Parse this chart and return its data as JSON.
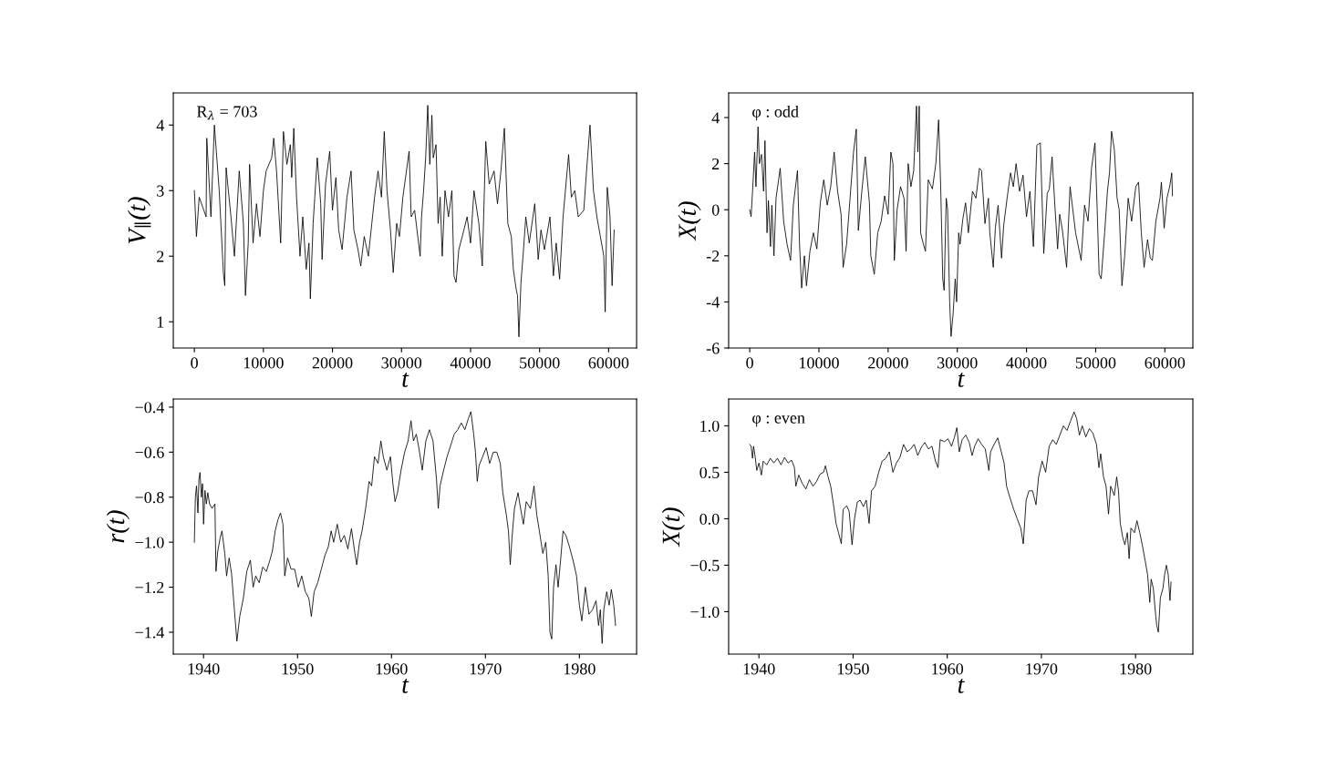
{
  "chart_data": [
    {
      "type": "line",
      "xlabel": "t",
      "ylabel": "V$_{∥}$(t)",
      "annotations": [
        "R$_{λ}$ = 703"
      ],
      "grid": false,
      "x": [
        0,
        300,
        700,
        1700,
        1800,
        2400,
        2900,
        3600,
        4200,
        4400,
        4600,
        5300,
        5800,
        6500,
        7100,
        7400,
        7800,
        8000,
        8500,
        9000,
        9500,
        10000,
        10400,
        11200,
        11500,
        11900,
        12500,
        12900,
        13400,
        13900,
        14100,
        14400,
        14800,
        15300,
        15700,
        16200,
        16600,
        16800,
        17200,
        17800,
        18300,
        18500,
        19000,
        19600,
        20000,
        20500,
        20900,
        21400,
        22100,
        22700,
        23100,
        23700,
        24100,
        24600,
        25200,
        25700,
        26100,
        26600,
        27100,
        27500,
        27900,
        28400,
        28800,
        29300,
        29700,
        30200,
        31100,
        31400,
        31900,
        32700,
        32900,
        33200,
        33500,
        33800,
        34100,
        34400,
        34600,
        35000,
        35300,
        35600,
        35900,
        36300,
        36800,
        37300,
        37600,
        37900,
        38300,
        38800,
        39500,
        40000,
        40500,
        41200,
        41700,
        42200,
        42700,
        43400,
        43900,
        44400,
        44900,
        45400,
        45900,
        46200,
        46600,
        46800,
        47000,
        47300,
        47600,
        48000,
        48500,
        49300,
        49800,
        50200,
        50700,
        51500,
        52000,
        52400,
        52900,
        53400,
        54200,
        54600,
        55100,
        55600,
        56400,
        56800,
        57300,
        57800,
        58300,
        58800,
        59300,
        59500,
        59800,
        60200,
        60500,
        60800
      ],
      "series": [
        {
          "color": "#000000",
          "values": [
            3.0,
            2.3,
            2.9,
            2.6,
            3.8,
            2.6,
            4.0,
            3.0,
            1.75,
            1.55,
            3.35,
            2.6,
            2.0,
            3.3,
            2.5,
            1.4,
            2.2,
            3.4,
            2.2,
            2.8,
            2.3,
            3.0,
            3.3,
            3.5,
            3.8,
            3.3,
            2.2,
            3.9,
            3.4,
            3.7,
            3.2,
            3.95,
            2.9,
            2.0,
            2.6,
            1.8,
            2.2,
            1.35,
            2.5,
            3.5,
            2.8,
            1.95,
            3.1,
            3.6,
            2.7,
            3.2,
            2.4,
            2.1,
            2.9,
            3.3,
            2.4,
            2.1,
            1.85,
            2.3,
            2.0,
            2.5,
            2.9,
            3.3,
            2.9,
            3.9,
            3.0,
            2.4,
            1.75,
            2.5,
            2.3,
            2.9,
            3.6,
            2.6,
            2.7,
            2.0,
            2.6,
            3.0,
            3.5,
            4.3,
            3.4,
            4.15,
            3.5,
            3.7,
            2.5,
            2.9,
            2.0,
            3.0,
            2.6,
            3.0,
            1.7,
            1.6,
            2.1,
            2.3,
            2.6,
            2.2,
            3.0,
            2.5,
            1.85,
            3.75,
            3.1,
            3.3,
            2.8,
            3.3,
            3.95,
            2.5,
            2.3,
            1.8,
            1.5,
            1.4,
            0.77,
            1.6,
            2.0,
            2.6,
            2.2,
            2.8,
            1.95,
            2.4,
            2.1,
            2.6,
            1.7,
            2.2,
            1.65,
            2.6,
            3.55,
            2.9,
            3.0,
            2.6,
            2.7,
            3.3,
            4.0,
            3.0,
            2.6,
            2.3,
            2.0,
            1.15,
            3.05,
            2.6,
            1.55,
            2.4
          ]
        }
      ],
      "xlim": [
        -3050,
        64050
      ],
      "ylim": [
        0.6,
        4.49
      ],
      "xticks": [
        0,
        10000,
        20000,
        30000,
        40000,
        50000,
        60000
      ],
      "yticks": [
        1,
        2,
        3,
        4
      ]
    },
    {
      "type": "line",
      "xlabel": "t",
      "ylabel": "X(t)",
      "annotations": [
        "φ : odd"
      ],
      "grid": false,
      "x": [
        0,
        200,
        500,
        700,
        900,
        1200,
        1400,
        1700,
        2000,
        2200,
        2500,
        2700,
        3000,
        3200,
        3500,
        3800,
        4400,
        4900,
        5400,
        5900,
        6300,
        6900,
        7200,
        7500,
        7900,
        8200,
        8700,
        9200,
        9700,
        10200,
        10700,
        11200,
        11700,
        12200,
        12700,
        13200,
        13500,
        14000,
        14500,
        15000,
        15400,
        15700,
        16200,
        16700,
        17300,
        17500,
        18000,
        18500,
        19000,
        19500,
        20000,
        20400,
        20700,
        20900,
        21300,
        21800,
        22300,
        22600,
        22900,
        23300,
        23700,
        24100,
        24300,
        24500,
        24700,
        25100,
        25400,
        25800,
        26400,
        26900,
        27300,
        27600,
        27900,
        28100,
        28400,
        28600,
        28900,
        29100,
        29400,
        29700,
        29900,
        30200,
        30400,
        30800,
        31200,
        31600,
        32200,
        32700,
        33200,
        33500,
        34000,
        34500,
        34700,
        35200,
        35500,
        35900,
        36400,
        36700,
        37200,
        37700,
        38100,
        38500,
        39000,
        39500,
        40000,
        40500,
        41000,
        41500,
        42000,
        42500,
        43000,
        43300,
        43700,
        44100,
        44500,
        44800,
        45200,
        45800,
        46300,
        47100,
        47900,
        48400,
        48900,
        49400,
        49900,
        50200,
        50500,
        50800,
        51300,
        51700,
        52000,
        52300,
        52700,
        53100,
        53400,
        53800,
        54200,
        54700,
        55200,
        55800,
        56200,
        56600,
        57000,
        57500,
        57900,
        58200,
        58700,
        59300,
        59500,
        59900,
        60300,
        60700,
        61000,
        61100
      ],
      "series": [
        {
          "color": "#000000",
          "values": [
            0,
            -0.3,
            1.3,
            2.5,
            1.0,
            3.6,
            2.0,
            2.4,
            0.8,
            3.0,
            -1.0,
            0.4,
            -1.6,
            0.2,
            -2.0,
            0.5,
            1.8,
            -0.5,
            -1.5,
            -2.2,
            0.2,
            1.7,
            -1.5,
            -3.4,
            -2.0,
            -3.3,
            -1.8,
            -1.0,
            -1.7,
            0.3,
            1.3,
            0.2,
            1.0,
            2.5,
            0.8,
            -0.2,
            -2.5,
            -1.5,
            0.5,
            2.5,
            3.5,
            -0.9,
            0.8,
            2.3,
            0.3,
            -2.0,
            -2.8,
            -1.0,
            -0.5,
            0.6,
            -0.2,
            2.5,
            2.0,
            -2.2,
            0.0,
            1.0,
            0.5,
            -1.8,
            2.0,
            1.0,
            1.7,
            4.5,
            2.5,
            4.5,
            -1.0,
            -1.5,
            -1.8,
            1.3,
            0.9,
            2.0,
            3.9,
            1.0,
            -3.0,
            -3.5,
            0.5,
            0.0,
            -4.0,
            -5.5,
            -4.5,
            -3.0,
            -4.0,
            -1.0,
            -1.5,
            -0.4,
            0.3,
            -1.0,
            0.8,
            0.5,
            1.8,
            1.7,
            -0.6,
            0.5,
            -1.0,
            -2.5,
            -0.8,
            0.2,
            -2.1,
            -0.7,
            0.5,
            1.6,
            1.0,
            2.0,
            0.8,
            1.5,
            -0.3,
            0.8,
            -1.6,
            2.8,
            2.9,
            -1.9,
            0.7,
            0.9,
            2.3,
            0.2,
            -1.7,
            -0.2,
            -0.9,
            -2.5,
            1.0,
            -1.0,
            -2.2,
            0.2,
            -0.5,
            1.8,
            2.9,
            0.2,
            -2.8,
            -3.0,
            -1.0,
            0.8,
            1.6,
            3.4,
            2.6,
            0.5,
            0.0,
            -3.3,
            -2.0,
            0.5,
            -0.5,
            1.0,
            1.2,
            -1.0,
            -2.5,
            -1.3,
            -2.1,
            -2.2,
            -0.5,
            0.5,
            1.2,
            -0.8,
            0.5,
            1.0,
            1.6,
            0.6
          ]
        }
      ],
      "xlim": [
        -3050,
        64050
      ],
      "ylim": [
        -6,
        5.07
      ],
      "xticks": [
        0,
        10000,
        20000,
        30000,
        40000,
        50000,
        60000
      ],
      "yticks": [
        -6,
        -4,
        -2,
        0,
        2,
        4
      ]
    },
    {
      "type": "line",
      "xlabel": "t",
      "ylabel": "r(t)",
      "grid": false,
      "x": [
        1939.02,
        1939.13,
        1939.25,
        1939.4,
        1939.51,
        1939.62,
        1939.77,
        1939.89,
        1940.0,
        1940.15,
        1940.3,
        1940.45,
        1940.64,
        1940.91,
        1941.21,
        1941.32,
        1941.51,
        1941.77,
        1941.96,
        1942.26,
        1942.45,
        1942.72,
        1942.98,
        1943.28,
        1943.55,
        1943.85,
        1944.23,
        1944.6,
        1944.98,
        1945.28,
        1945.55,
        1945.92,
        1946.3,
        1946.68,
        1947.06,
        1947.32,
        1947.62,
        1947.92,
        1948.19,
        1948.45,
        1948.64,
        1948.94,
        1949.32,
        1949.7,
        1950.08,
        1950.45,
        1950.83,
        1951.21,
        1951.47,
        1951.77,
        1952.15,
        1952.53,
        1952.91,
        1953.28,
        1953.58,
        1953.85,
        1954.23,
        1954.6,
        1954.98,
        1955.36,
        1955.74,
        1956.11,
        1956.3,
        1956.6,
        1956.87,
        1957.25,
        1957.62,
        1957.89,
        1958.19,
        1958.57,
        1958.87,
        1959.13,
        1959.51,
        1959.89,
        1960.15,
        1960.38,
        1960.64,
        1961.02,
        1961.4,
        1961.77,
        1962.08,
        1962.34,
        1962.64,
        1962.91,
        1963.28,
        1963.66,
        1964.04,
        1964.42,
        1964.79,
        1964.98,
        1965.17,
        1965.55,
        1965.92,
        1966.3,
        1966.68,
        1967.06,
        1967.43,
        1967.81,
        1968.19,
        1968.45,
        1968.75,
        1968.94,
        1969.13,
        1969.32,
        1969.7,
        1970.08,
        1970.45,
        1970.83,
        1971.21,
        1971.58,
        1971.85,
        1972.23,
        1972.45,
        1972.64,
        1972.83,
        1973.09,
        1973.47,
        1973.74,
        1974.04,
        1974.34,
        1974.79,
        1975.17,
        1975.47,
        1975.74,
        1976.11,
        1976.42,
        1976.68,
        1976.87,
        1977.06,
        1977.25,
        1977.51,
        1977.74,
        1978.0,
        1978.26,
        1978.57,
        1978.94,
        1979.32,
        1979.7,
        1980.0,
        1980.26,
        1980.64,
        1981.02,
        1981.4,
        1981.77,
        1982.04,
        1982.23,
        1982.42,
        1982.6,
        1982.91,
        1983.17,
        1983.4,
        1983.66,
        1983.85
      ],
      "series": [
        {
          "color": "#000000",
          "values": [
            -1.0,
            -0.8,
            -0.75,
            -0.87,
            -0.72,
            -0.69,
            -0.8,
            -0.74,
            -0.92,
            -0.77,
            -0.83,
            -0.78,
            -0.83,
            -0.85,
            -0.83,
            -1.13,
            -1.04,
            -0.98,
            -0.95,
            -1.05,
            -1.15,
            -1.07,
            -1.14,
            -1.3,
            -1.44,
            -1.33,
            -1.25,
            -1.13,
            -1.08,
            -1.2,
            -1.15,
            -1.18,
            -1.11,
            -1.13,
            -1.08,
            -1.04,
            -0.95,
            -0.9,
            -0.87,
            -0.92,
            -1.15,
            -1.07,
            -1.12,
            -1.12,
            -1.2,
            -1.15,
            -1.22,
            -1.25,
            -1.33,
            -1.22,
            -1.18,
            -1.12,
            -1.06,
            -1.02,
            -0.95,
            -1.0,
            -0.92,
            -1.0,
            -0.97,
            -1.03,
            -0.94,
            -1.05,
            -1.1,
            -1.0,
            -0.95,
            -0.85,
            -0.73,
            -0.75,
            -0.62,
            -0.65,
            -0.55,
            -0.62,
            -0.68,
            -0.62,
            -0.74,
            -0.82,
            -0.78,
            -0.68,
            -0.6,
            -0.55,
            -0.46,
            -0.55,
            -0.52,
            -0.58,
            -0.68,
            -0.55,
            -0.5,
            -0.55,
            -0.72,
            -0.85,
            -0.75,
            -0.68,
            -0.62,
            -0.57,
            -0.52,
            -0.5,
            -0.47,
            -0.5,
            -0.45,
            -0.42,
            -0.52,
            -0.6,
            -0.73,
            -0.66,
            -0.62,
            -0.58,
            -0.65,
            -0.6,
            -0.6,
            -0.65,
            -0.78,
            -0.88,
            -0.95,
            -1.1,
            -0.98,
            -0.85,
            -0.78,
            -0.85,
            -0.92,
            -0.82,
            -0.85,
            -0.75,
            -0.88,
            -0.95,
            -1.05,
            -1.0,
            -1.15,
            -1.4,
            -1.43,
            -1.2,
            -1.1,
            -1.2,
            -1.08,
            -0.95,
            -0.97,
            -1.02,
            -1.08,
            -1.15,
            -1.28,
            -1.35,
            -1.2,
            -1.32,
            -1.3,
            -1.26,
            -1.37,
            -1.3,
            -1.45,
            -1.3,
            -1.22,
            -1.28,
            -1.21,
            -1.28,
            -1.37
          ]
        }
      ],
      "xlim": [
        1936.78,
        1986.09
      ],
      "ylim": [
        -1.497,
        -0.364
      ],
      "xticks": [
        1940,
        1950,
        1960,
        1970,
        1980
      ],
      "yticks": [
        {
          "value": -1.4,
          "label": "−1.4"
        },
        {
          "value": -1.2,
          "label": "−1.2"
        },
        {
          "value": -1.0,
          "label": "−1.0"
        },
        {
          "value": -0.8,
          "label": "−0.8"
        },
        {
          "value": -0.6,
          "label": "−0.6"
        },
        {
          "value": -0.4,
          "label": "−0.4"
        }
      ]
    },
    {
      "type": "line",
      "xlabel": "t",
      "ylabel": "X(t)",
      "annotations": [
        "φ : even"
      ],
      "grid": false,
      "x": [
        1939.02,
        1939.17,
        1939.32,
        1939.43,
        1939.58,
        1939.77,
        1940.0,
        1940.26,
        1940.45,
        1940.83,
        1941.21,
        1941.58,
        1941.96,
        1942.34,
        1942.72,
        1943.09,
        1943.47,
        1943.77,
        1943.92,
        1944.23,
        1944.6,
        1944.98,
        1945.36,
        1945.74,
        1946.11,
        1946.49,
        1946.87,
        1947.06,
        1947.32,
        1947.62,
        1947.92,
        1948.19,
        1948.45,
        1948.75,
        1948.94,
        1949.32,
        1949.58,
        1949.89,
        1950.15,
        1950.45,
        1950.75,
        1951.09,
        1951.4,
        1951.7,
        1951.96,
        1952.34,
        1952.72,
        1953.09,
        1953.47,
        1953.85,
        1954.23,
        1954.6,
        1954.98,
        1955.36,
        1955.74,
        1956.11,
        1956.49,
        1956.87,
        1957.25,
        1957.62,
        1958.0,
        1958.38,
        1958.75,
        1959.02,
        1959.25,
        1959.7,
        1960.08,
        1960.45,
        1960.75,
        1961.02,
        1961.28,
        1961.58,
        1961.96,
        1962.34,
        1962.64,
        1962.91,
        1963.28,
        1963.66,
        1964.04,
        1964.42,
        1964.6,
        1964.98,
        1965.36,
        1965.74,
        1966.04,
        1966.3,
        1966.68,
        1967.06,
        1967.43,
        1967.81,
        1968.08,
        1968.38,
        1968.68,
        1969.06,
        1969.43,
        1969.7,
        1970.08,
        1970.45,
        1970.83,
        1971.21,
        1971.58,
        1971.96,
        1972.34,
        1972.72,
        1973.09,
        1973.47,
        1973.74,
        1974.04,
        1974.34,
        1974.72,
        1975.09,
        1975.47,
        1975.85,
        1976.11,
        1976.3,
        1976.6,
        1976.87,
        1977.13,
        1977.36,
        1977.74,
        1978.0,
        1978.19,
        1978.38,
        1978.64,
        1978.87,
        1979.13,
        1979.32,
        1979.51,
        1979.89,
        1980.15,
        1980.45,
        1980.75,
        1981.02,
        1981.28,
        1981.51,
        1981.66,
        1981.89,
        1982.15,
        1982.26,
        1982.42,
        1982.64,
        1982.91,
        1983.09,
        1983.28,
        1983.47,
        1983.66,
        1983.77
      ],
      "series": [
        {
          "color": "#000000",
          "values": [
            0.8,
            0.78,
            0.65,
            0.78,
            0.68,
            0.52,
            0.6,
            0.47,
            0.62,
            0.58,
            0.65,
            0.6,
            0.65,
            0.58,
            0.66,
            0.6,
            0.63,
            0.55,
            0.35,
            0.47,
            0.38,
            0.32,
            0.42,
            0.35,
            0.4,
            0.48,
            0.5,
            0.57,
            0.46,
            0.35,
            0.15,
            -0.05,
            -0.15,
            -0.27,
            0.1,
            0.14,
            0.08,
            -0.28,
            0.0,
            0.18,
            0.2,
            0.13,
            0.2,
            -0.05,
            0.3,
            0.35,
            0.5,
            0.62,
            0.65,
            0.72,
            0.5,
            0.6,
            0.66,
            0.8,
            0.72,
            0.75,
            0.8,
            0.68,
            0.77,
            0.82,
            0.75,
            0.78,
            0.62,
            0.55,
            0.85,
            0.83,
            0.86,
            0.78,
            0.87,
            0.98,
            0.72,
            0.85,
            0.9,
            0.82,
            0.68,
            0.78,
            0.86,
            0.8,
            0.75,
            0.52,
            0.72,
            0.8,
            0.87,
            0.72,
            0.6,
            0.35,
            0.22,
            0.1,
            0.0,
            -0.1,
            -0.27,
            0.2,
            0.3,
            0.3,
            0.15,
            0.45,
            0.62,
            0.5,
            0.78,
            0.85,
            0.8,
            0.9,
            1.0,
            0.95,
            1.05,
            1.15,
            1.08,
            0.9,
            1.0,
            0.88,
            0.97,
            0.92,
            0.8,
            0.55,
            0.7,
            0.45,
            0.35,
            0.05,
            0.35,
            0.25,
            0.45,
            0.3,
            -0.05,
            -0.2,
            -0.28,
            -0.15,
            -0.43,
            -0.1,
            -0.15,
            -0.02,
            -0.15,
            -0.3,
            -0.45,
            -0.6,
            -0.9,
            -0.65,
            -0.75,
            -1.05,
            -1.15,
            -1.22,
            -0.85,
            -0.75,
            -0.6,
            -0.5,
            -0.6,
            -0.88,
            -0.68
          ]
        }
      ],
      "xlim": [
        1936.78,
        1986.09
      ],
      "ylim": [
        -1.456,
        1.288
      ],
      "xticks": [
        1940,
        1950,
        1960,
        1970,
        1980
      ],
      "yticks": [
        {
          "value": -1.0,
          "label": "−1.0"
        },
        {
          "value": -0.5,
          "label": "−0.5"
        },
        {
          "value": 0.0,
          "label": "0.0"
        },
        {
          "value": 0.5,
          "label": "0.5"
        },
        {
          "value": 1.0,
          "label": "1.0"
        }
      ]
    }
  ]
}
